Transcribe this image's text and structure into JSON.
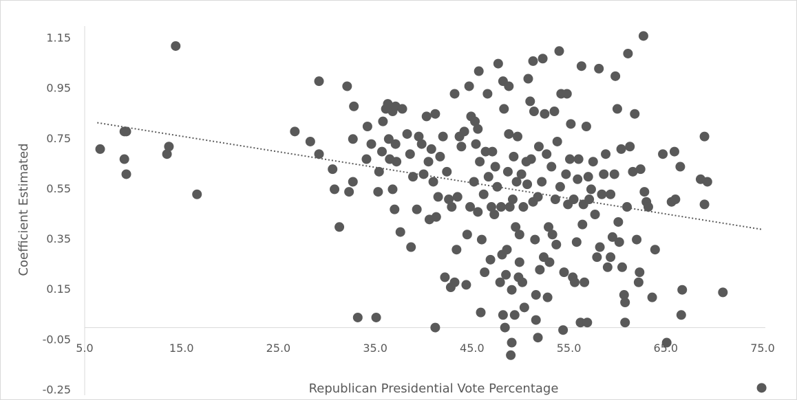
{
  "chart_data": {
    "type": "scatter",
    "color": "#595959",
    "x_label": "Republican Presidential Vote Percentage",
    "y_label": "Coefficient Estimated",
    "xlim": [
      5.0,
      75.0
    ],
    "ylim": [
      -0.25,
      1.15
    ],
    "xticks": [
      {
        "value": 5,
        "label": "5.0"
      },
      {
        "value": 15,
        "label": "15.0"
      },
      {
        "value": 25,
        "label": "25.0"
      },
      {
        "value": 35,
        "label": "35.0"
      },
      {
        "value": 45,
        "label": "45.0"
      },
      {
        "value": 55,
        "label": "55.0"
      },
      {
        "value": 65,
        "label": "65.0"
      },
      {
        "value": 75,
        "label": "75.0"
      }
    ],
    "yticks": [
      1.15,
      0.95,
      0.75,
      0.55,
      0.35,
      0.15,
      -0.05,
      -0.25
    ],
    "x_axis_crosses": 0,
    "grid": false,
    "trendline": {
      "x": [
        6.3,
        75.0
      ],
      "values": [
        0.815,
        0.39
      ]
    },
    "x": [
      6.6,
      9.1,
      9.1,
      9.3,
      9.3,
      13.5,
      13.7,
      14.4,
      16.6,
      26.7,
      28.3,
      29.2,
      29.2,
      30.6,
      30.8,
      31.3,
      32.1,
      32.3,
      32.7,
      32.8,
      32.7,
      33.2,
      34.1,
      34.2,
      34.6,
      35.1,
      35.3,
      35.4,
      35.7,
      35.8,
      36.1,
      36.3,
      36.4,
      36.5,
      36.8,
      36.8,
      37.0,
      37.1,
      37.2,
      37.1,
      37.6,
      37.8,
      38.3,
      38.6,
      38.7,
      38.9,
      39.3,
      39.5,
      39.8,
      40.0,
      40.3,
      40.5,
      40.6,
      40.8,
      41.0,
      41.2,
      41.2,
      41.3,
      41.5,
      41.7,
      42.0,
      42.2,
      42.4,
      42.6,
      42.8,
      42.9,
      43.2,
      43.2,
      43.4,
      43.5,
      43.7,
      43.9,
      44.2,
      44.4,
      44.5,
      44.7,
      44.8,
      44.9,
      45.2,
      45.3,
      45.4,
      45.6,
      45.6,
      45.7,
      45.8,
      45.9,
      46.0,
      46.2,
      46.3,
      46.4,
      46.6,
      46.7,
      46.9,
      47.0,
      47.1,
      47.3,
      47.4,
      47.6,
      47.7,
      47.9,
      48.0,
      48.1,
      48.2,
      48.2,
      48.3,
      48.4,
      48.5,
      48.6,
      48.7,
      48.8,
      48.8,
      48.9,
      49.0,
      49.1,
      49.1,
      49.2,
      49.3,
      49.4,
      49.5,
      49.6,
      49.7,
      49.8,
      49.9,
      49.9,
      50.1,
      50.2,
      50.3,
      50.4,
      50.6,
      50.7,
      50.8,
      51.0,
      51.1,
      51.3,
      51.3,
      51.4,
      51.5,
      51.6,
      51.6,
      51.8,
      51.8,
      51.9,
      52.0,
      52.2,
      52.3,
      52.4,
      52.5,
      52.7,
      52.8,
      52.9,
      53.0,
      53.2,
      53.3,
      53.5,
      53.6,
      53.7,
      53.8,
      54.0,
      54.1,
      54.2,
      54.4,
      54.5,
      54.7,
      54.8,
      54.9,
      55.1,
      55.2,
      55.4,
      55.5,
      55.6,
      55.8,
      55.9,
      56.0,
      56.2,
      56.3,
      56.4,
      56.5,
      56.6,
      56.8,
      56.9,
      57.0,
      57.1,
      57.3,
      57.5,
      57.7,
      57.9,
      58.1,
      58.2,
      58.4,
      58.6,
      58.8,
      59.0,
      59.3,
      59.3,
      59.5,
      59.7,
      59.8,
      60.0,
      60.1,
      60.2,
      60.4,
      60.5,
      60.7,
      60.8,
      60.8,
      61.0,
      61.1,
      61.3,
      61.6,
      61.8,
      62.0,
      62.2,
      62.3,
      62.4,
      62.7,
      62.8,
      63.0,
      63.2,
      63.6,
      63.9,
      64.7,
      65.1,
      65.6,
      65.9,
      66.0,
      66.5,
      66.7,
      66.6,
      68.6,
      69.0,
      69.0,
      69.3,
      70.9,
      74.9
    ],
    "values": [
      0.71,
      0.67,
      0.78,
      0.78,
      0.61,
      0.69,
      0.72,
      1.12,
      0.53,
      0.78,
      0.74,
      0.98,
      0.69,
      0.63,
      0.55,
      0.4,
      0.96,
      0.54,
      0.58,
      0.88,
      0.75,
      0.04,
      0.67,
      0.8,
      0.73,
      0.04,
      0.54,
      0.62,
      0.7,
      0.82,
      0.87,
      0.89,
      0.75,
      0.67,
      0.86,
      0.55,
      0.47,
      0.73,
      0.66,
      0.88,
      0.38,
      0.87,
      0.77,
      0.69,
      0.32,
      0.6,
      0.47,
      0.76,
      0.73,
      0.61,
      0.84,
      0.66,
      0.43,
      0.71,
      0.58,
      0.85,
      0.0,
      0.44,
      0.52,
      0.68,
      0.76,
      0.2,
      0.62,
      0.51,
      0.16,
      0.48,
      0.18,
      0.93,
      0.31,
      0.52,
      0.76,
      0.72,
      0.78,
      0.17,
      0.37,
      0.96,
      0.48,
      0.84,
      0.58,
      0.82,
      0.73,
      0.79,
      0.46,
      1.02,
      0.66,
      0.06,
      0.35,
      0.53,
      0.22,
      0.7,
      0.93,
      0.6,
      0.27,
      0.48,
      0.7,
      0.45,
      0.64,
      0.56,
      1.05,
      0.18,
      0.48,
      0.29,
      0.05,
      0.98,
      0.87,
      0.0,
      0.21,
      0.31,
      0.62,
      0.77,
      0.96,
      0.48,
      -0.11,
      -0.06,
      0.15,
      0.51,
      0.68,
      0.05,
      0.4,
      0.58,
      0.76,
      0.2,
      0.26,
      0.37,
      0.61,
      0.18,
      0.48,
      0.08,
      0.66,
      0.57,
      0.99,
      0.9,
      0.67,
      0.5,
      1.06,
      0.86,
      0.35,
      0.13,
      0.03,
      0.52,
      -0.04,
      0.72,
      0.23,
      0.58,
      1.07,
      0.28,
      0.85,
      0.69,
      0.12,
      0.4,
      0.26,
      0.64,
      0.37,
      0.86,
      0.51,
      0.33,
      0.74,
      1.1,
      0.56,
      0.93,
      -0.01,
      0.22,
      0.61,
      0.93,
      0.49,
      0.67,
      0.81,
      0.2,
      0.51,
      0.18,
      0.34,
      0.59,
      0.67,
      0.02,
      1.04,
      0.41,
      0.49,
      0.18,
      0.8,
      0.02,
      0.6,
      0.51,
      0.55,
      0.66,
      0.45,
      0.28,
      1.03,
      0.32,
      0.53,
      0.61,
      0.69,
      0.24,
      0.53,
      0.28,
      0.36,
      0.61,
      1.0,
      0.87,
      0.42,
      0.34,
      0.71,
      0.24,
      0.13,
      0.1,
      0.02,
      0.48,
      1.09,
      0.72,
      0.62,
      0.85,
      0.35,
      0.18,
      0.22,
      0.63,
      1.16,
      0.54,
      0.5,
      0.48,
      0.12,
      0.31,
      0.69,
      -0.06,
      0.5,
      0.7,
      0.51,
      0.64,
      0.15,
      0.05,
      0.59,
      0.49,
      0.76,
      0.58,
      0.14,
      -0.24
    ]
  }
}
